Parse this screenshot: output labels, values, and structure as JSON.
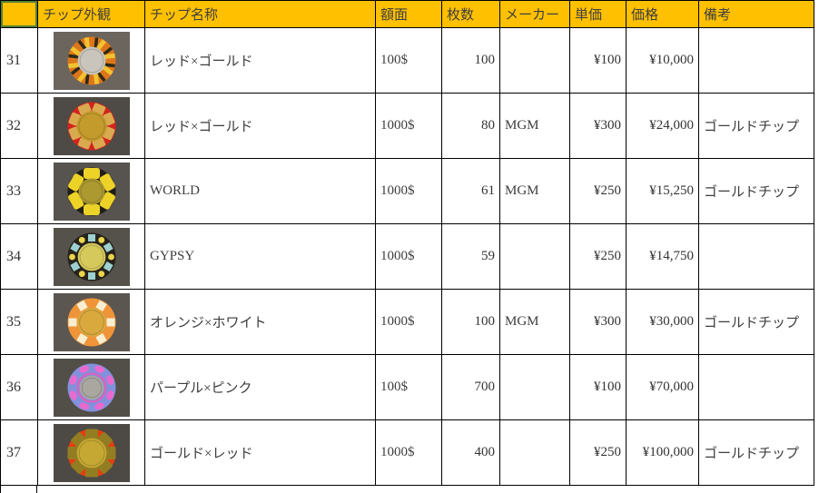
{
  "sheet": {
    "colors": {
      "header_bg": "#FFC000",
      "selection_green": "#538135",
      "grid_line": "#000000",
      "cell_text": "#333333"
    },
    "header": {
      "cells": [
        "",
        "チップ外観",
        "チップ名称",
        "額面",
        "枚数",
        "メーカー",
        "単価",
        "価格",
        "備考"
      ]
    },
    "rows": [
      {
        "num": "31",
        "name": "レッド×ゴールド",
        "face": "100$",
        "count": "100",
        "maker": "",
        "unit": "¥100",
        "price": "¥10,000",
        "note": "",
        "chip": {
          "icon": "poker-chip-orange-silver",
          "photo_bg": "#6B655E",
          "body": "#DD761B",
          "style": "stripes",
          "marks": [
            "#F2C330",
            "#2E2A18"
          ],
          "center": "#C9C5BD",
          "center_r": 0.58
        }
      },
      {
        "num": "32",
        "name": "レッド×ゴールド",
        "face": "1000$",
        "count": "80",
        "maker": "MGM",
        "unit": "¥300",
        "price": "¥24,000",
        "note": "ゴールドチップ",
        "chip": {
          "icon": "poker-chip-red-gold",
          "photo_bg": "#4E4A45",
          "body": "#D3241F",
          "style": "blocks",
          "marks": [
            "#D9A94F"
          ],
          "center": "#C39A2C",
          "center_r": 0.63
        }
      },
      {
        "num": "33",
        "name": "WORLD",
        "face": "1000$",
        "count": "61",
        "maker": "MGM",
        "unit": "¥250",
        "price": "¥15,250",
        "note": "ゴールドチップ",
        "chip": {
          "icon": "poker-chip-black-yellow",
          "photo_bg": "#57534E",
          "body": "#211E17",
          "style": "wedges6",
          "marks": [
            "#EDD327"
          ],
          "center": "#AC9930",
          "center_r": 0.55
        }
      },
      {
        "num": "34",
        "name": "GYPSY",
        "face": "1000$",
        "count": "59",
        "maker": "",
        "unit": "¥250",
        "price": "¥14,750",
        "note": "",
        "chip": {
          "icon": "poker-chip-black-teal-yellow",
          "photo_bg": "#55514B",
          "body": "#26231C",
          "style": "altmarks",
          "marks": [
            "#9ED0CF",
            "#EDD44B"
          ],
          "center": "#D5C95C",
          "center_r": 0.58
        }
      },
      {
        "num": "35",
        "name": "オレンジ×ホワイト",
        "face": "1000$",
        "count": "100",
        "maker": "MGM",
        "unit": "¥300",
        "price": "¥30,000",
        "note": "ゴールドチップ",
        "chip": {
          "icon": "poker-chip-orange-white",
          "photo_bg": "#5B5650",
          "body": "#EF9439",
          "style": "squares",
          "marks": [
            "#F8EFD2"
          ],
          "center": "#D9A93E",
          "center_r": 0.6
        }
      },
      {
        "num": "36",
        "name": "パープル×ピンク",
        "face": "100$",
        "count": "700",
        "maker": "",
        "unit": "¥100",
        "price": "¥70,000",
        "note": "",
        "chip": {
          "icon": "poker-chip-purple-pink",
          "photo_bg": "#524E48",
          "body": "#8191DB",
          "style": "dots",
          "marks": [
            "#EB69CF"
          ],
          "center": "#A9A7A0",
          "ring": "#E05FBE",
          "center_r": 0.5
        }
      },
      {
        "num": "37",
        "name": "ゴールド×レッド",
        "face": "1000$",
        "count": "400",
        "maker": "",
        "unit": "¥250",
        "price": "¥100,000",
        "note": "ゴールドチップ",
        "chip": {
          "icon": "poker-chip-red-goldgear",
          "photo_bg": "#4D4A45",
          "body": "#E63D10",
          "style": "gear8",
          "marks": [
            "#937D22"
          ],
          "center": "#C5A833",
          "center_r": 0.62
        }
      }
    ]
  }
}
